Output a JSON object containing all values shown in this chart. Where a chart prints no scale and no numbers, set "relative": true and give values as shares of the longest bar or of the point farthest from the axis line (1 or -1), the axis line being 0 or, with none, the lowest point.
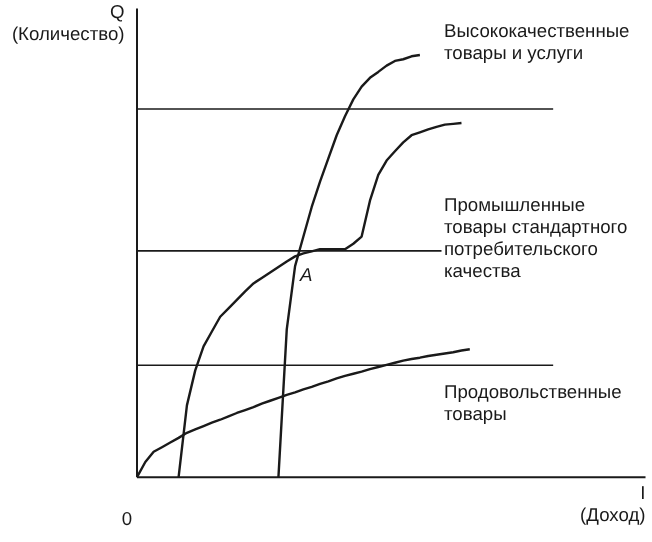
{
  "chart_data": {
    "type": "line",
    "relative": true,
    "ylabel": "Q\n(Количество)",
    "grid": false,
    "categories": [
      null,
      null,
      null,
      null,
      null,
      null,
      null,
      null,
      null,
      null,
      null,
      null,
      null,
      null,
      null,
      null,
      null,
      null,
      null,
      null,
      null,
      null,
      null,
      null,
      null,
      null,
      null,
      null,
      null,
      null,
      null,
      null,
      null,
      null,
      null,
      null,
      null,
      null,
      null,
      null,
      null
    ],
    "series": [
      {
        "color": "#1a1a1a",
        "values": [
          0,
          0.036,
          0.06,
          0.071,
          0.082,
          0.093,
          0.105,
          0.113,
          0.121,
          0.129,
          0.136,
          0.144,
          0.152,
          0.159,
          0.166,
          0.174,
          0.181,
          0.188,
          0.195,
          0.201,
          0.208,
          0.214,
          0.221,
          0.227,
          0.234,
          0.24,
          0.245,
          0.25,
          0.256,
          0.261,
          0.266,
          0.271,
          0.276,
          0.28,
          0.283,
          0.287,
          0.29,
          0.293,
          0.296,
          0.3,
          0.303
        ]
      },
      {
        "color": "#1a1a1a",
        "values": [
          null,
          null,
          null,
          null,
          null,
          0,
          0.17,
          0.253,
          0.31,
          0.345,
          0.38,
          0.4,
          0.42,
          0.44,
          0.459,
          0.472,
          0.485,
          0.498,
          0.511,
          0.523,
          0.53,
          0.535,
          0.54,
          0.54,
          0.54,
          0.54,
          0.553,
          0.57,
          0.655,
          0.716,
          0.75,
          0.772,
          0.793,
          0.81,
          0.817,
          0.824,
          0.83,
          0.835,
          0.837,
          0.839,
          null
        ]
      },
      {
        "color": "#1a1a1a",
        "values": [
          null,
          null,
          null,
          null,
          null,
          null,
          null,
          null,
          null,
          null,
          null,
          null,
          null,
          null,
          null,
          null,
          null,
          0,
          0.35,
          0.5,
          0.57,
          0.64,
          0.7,
          0.755,
          0.81,
          0.855,
          0.895,
          0.925,
          0.946,
          0.96,
          0.975,
          0.986,
          0.99,
          0.997,
          1,
          null,
          null,
          null,
          null,
          null,
          null
        ]
      }
    ],
    "ref_lines": [
      {
        "axis": "y",
        "value": 0.872,
        "color": "#1a1a1a"
      },
      {
        "axis": "y",
        "value": 0.536,
        "color": "#1a1a1a"
      },
      {
        "axis": "y",
        "value": 0.265,
        "color": "#1a1a1a"
      }
    ],
    "annotations": [
      "Высококачественные\nтовары и услуги",
      "Промышленные\nтовары стандартного\nпотребительского\nкачества",
      "Продовольственные\nтовары",
      "A",
      "0",
      "I\n(Доход)"
    ]
  }
}
